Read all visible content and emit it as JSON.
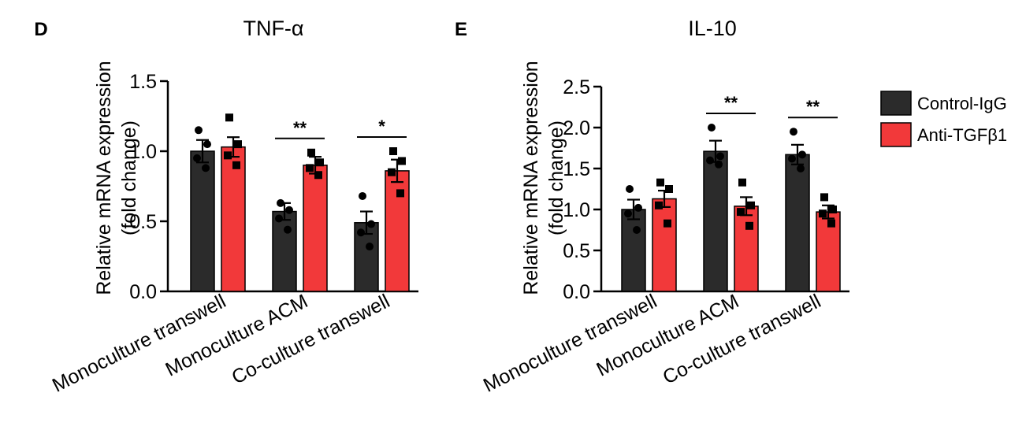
{
  "colors": {
    "control": "#2b2b2b",
    "anti": "#f2393a",
    "axis": "#000000"
  },
  "legend": {
    "placement": "right",
    "items": [
      {
        "label": "Control-IgG",
        "color": "#2b2b2b"
      },
      {
        "label": "Anti-TGFβ1",
        "color": "#f2393a"
      }
    ]
  },
  "chart_data": [
    {
      "panel": "D",
      "type": "bar",
      "title": "TNF-α",
      "ylabel": "Relative mRNA expression",
      "ylabel2": "(fold change)",
      "ylim": [
        0,
        1.5
      ],
      "yticks": [
        0.0,
        0.5,
        1.0,
        1.5
      ],
      "ytick_labels": [
        "0.0",
        "0.5",
        "1.0",
        "1.5"
      ],
      "categories": [
        "Monoculture transwell",
        "Monoculture ACM",
        "Co-culture transwell"
      ],
      "series": [
        {
          "name": "Control-IgG",
          "values": [
            1.0,
            0.57,
            0.49
          ],
          "errors": [
            0.08,
            0.06,
            0.08
          ],
          "points": [
            [
              1.15,
              1.05,
              0.95,
              0.88
            ],
            [
              0.63,
              0.58,
              0.52,
              0.44
            ],
            [
              0.68,
              0.48,
              0.42,
              0.32
            ]
          ]
        },
        {
          "name": "Anti-TGFβ1",
          "values": [
            1.03,
            0.9,
            0.86
          ],
          "errors": [
            0.07,
            0.06,
            0.08
          ],
          "points": [
            [
              1.24,
              1.05,
              0.97,
              0.9
            ],
            [
              0.99,
              0.92,
              0.88,
              0.83
            ],
            [
              1.0,
              0.93,
              0.85,
              0.7
            ]
          ]
        }
      ],
      "significance": [
        {
          "category_index": 1,
          "label": "**"
        },
        {
          "category_index": 2,
          "label": "*"
        }
      ]
    },
    {
      "panel": "E",
      "type": "bar",
      "title": "IL-10",
      "ylabel": "Relative mRNA expression",
      "ylabel2": "(fold change)",
      "ylim": [
        0,
        2.5
      ],
      "yticks": [
        0.0,
        0.5,
        1.0,
        1.5,
        2.0,
        2.5
      ],
      "ytick_labels": [
        "0.0",
        "0.5",
        "1.0",
        "1.5",
        "2.0",
        "2.5"
      ],
      "categories": [
        "Monoculture transwell",
        "Monoculture ACM",
        "Co-culture transwell"
      ],
      "series": [
        {
          "name": "Control-IgG",
          "values": [
            1.0,
            1.71,
            1.67
          ],
          "errors": [
            0.12,
            0.13,
            0.12
          ],
          "points": [
            [
              1.25,
              1.02,
              0.95,
              0.75
            ],
            [
              2.0,
              1.65,
              1.6,
              1.55
            ],
            [
              1.95,
              1.67,
              1.62,
              1.5
            ]
          ]
        },
        {
          "name": "Anti-TGFβ1",
          "values": [
            1.13,
            1.04,
            0.97
          ],
          "errors": [
            0.1,
            0.11,
            0.08
          ],
          "points": [
            [
              1.33,
              1.25,
              1.05,
              0.83
            ],
            [
              1.33,
              1.05,
              0.97,
              0.8
            ],
            [
              1.15,
              1.0,
              0.95,
              0.83
            ]
          ]
        }
      ],
      "significance": [
        {
          "category_index": 1,
          "label": "**"
        },
        {
          "category_index": 2,
          "label": "**"
        }
      ]
    }
  ]
}
